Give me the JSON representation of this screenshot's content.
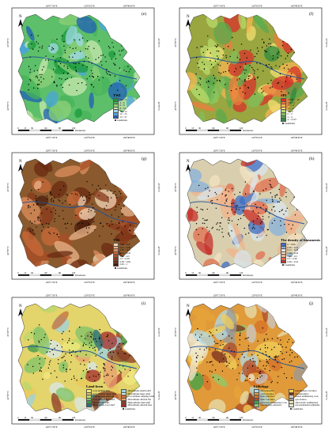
{
  "graticule": {
    "lon_ticks": [
      "129°17'30\"E",
      "129°35'0\"E",
      "130°48'30\"E"
    ],
    "lat_left": [
      "43°2'0\"N",
      "42°5'0\"N"
    ],
    "lat_right": [
      "43°2'0\"N",
      "42°5'0\"N"
    ]
  },
  "scalebar": {
    "ticks": [
      "0",
      "15",
      "30",
      "60",
      "90",
      "120"
    ],
    "unit": "Kilometers"
  },
  "north": "N",
  "landslides_label": "Landslides",
  "panels": [
    {
      "id": "e",
      "label": "(e)",
      "legend_title": "TWI",
      "legend_items": [
        {
          "text": "2.9 ~ 4",
          "color": "#1a9a3c"
        },
        {
          "text": "4 ~ 6",
          "color": "#46b35a"
        },
        {
          "text": "6 ~ 8",
          "color": "#8fd07a"
        },
        {
          "text": "8 ~ 10",
          "color": "#c8e8b0"
        },
        {
          "text": "10 ~ 12",
          "color": "#9fd8ea"
        },
        {
          "text": "12 ~ 15",
          "color": "#4aa6dc"
        },
        {
          "text": "15 ~ 27",
          "color": "#1f5fb7"
        }
      ],
      "map_color": "#5dbf6a"
    },
    {
      "id": "f",
      "label": "(f)",
      "legend_title": "SPI",
      "legend_items": [
        {
          "text": "-13.82 ~ -10",
          "color": "#d7302a"
        },
        {
          "text": "-10 ~ -7",
          "color": "#ef7b3e"
        },
        {
          "text": "-7 ~ -4",
          "color": "#f6b553"
        },
        {
          "text": "-4 ~ -2",
          "color": "#f3df73"
        },
        {
          "text": "-2 ~ 0",
          "color": "#b8d96a"
        },
        {
          "text": "0 ~ 2",
          "color": "#7fbf59"
        },
        {
          "text": "2 ~ 4",
          "color": "#58a94d"
        },
        {
          "text": "4 ~ 13.25",
          "color": "#2e8a3e"
        }
      ],
      "map_color": "#9aa640"
    },
    {
      "id": "g",
      "label": "(g)",
      "legend_title": "TRI",
      "legend_items": [
        {
          "text": "0.99 ~ 0.27",
          "color": "#f2d4b6"
        },
        {
          "text": "0.27 ~ 0.36",
          "color": "#e9b48a"
        },
        {
          "text": "0.36 ~ 0.41",
          "color": "#dc8f5d"
        },
        {
          "text": "0.41 ~ 0.45",
          "color": "#c96a3a"
        },
        {
          "text": "0.45 ~ 0.5",
          "color": "#a84e27"
        },
        {
          "text": "0.5 ~ 0.58",
          "color": "#8a3a1b"
        },
        {
          "text": "0.58 ~ 0.65",
          "color": "#6a2a12"
        },
        {
          "text": "0.65 ~ 1",
          "color": "#4c1d0b"
        }
      ],
      "map_color": "#8a5a2e"
    },
    {
      "id": "h",
      "label": "(h)",
      "legend_title": "The density of lineaments",
      "legend_items": [
        {
          "text": "0 ~ 0.06",
          "color": "#3e6dc4"
        },
        {
          "text": "0.06 ~ 0.12",
          "color": "#86b1dc"
        },
        {
          "text": "0.12 ~ 0.18",
          "color": "#d8e6ec"
        },
        {
          "text": "0.18 ~ 0.24",
          "color": "#f1e3c2"
        },
        {
          "text": "0.24 ~ 0.3",
          "color": "#f0b189"
        },
        {
          "text": "0.3 ~ 0.36",
          "color": "#e06d4e"
        },
        {
          "text": "0.36 ~ 0.41",
          "color": "#c6312a"
        }
      ],
      "map_color": "#d9cfae"
    },
    {
      "id": "i",
      "label": "(i)",
      "legend_title": "Land form",
      "legend_items": [
        {
          "text": "Low-altitude hills",
          "color": "#f2e97d"
        },
        {
          "text": "Low-altitude small relief",
          "color": "#e9c95b"
        },
        {
          "text": "Low-altitude platform",
          "color": "#b9d86a"
        },
        {
          "text": "Low-altitude mid relief",
          "color": "#7fc36a"
        },
        {
          "text": "Mid-altitude hills",
          "color": "#3c9a4a"
        },
        {
          "text": "Mid-altitude low relief",
          "color": "#2b6d7a"
        },
        {
          "text": "Mid-altitude small relief",
          "color": "#9cd3e2"
        },
        {
          "text": "Mid-altitude huge relief",
          "color": "#d9e8ec"
        },
        {
          "text": "Low-altitude stepping relief",
          "color": "#c76f3c"
        },
        {
          "text": "Mid-altitude alluvial flat",
          "color": "#e8a070"
        },
        {
          "text": "High-altitude mid relief",
          "color": "#8a3d26"
        },
        {
          "text": "Mid-altitude alluvial fans",
          "color": "#a32b2b"
        }
      ],
      "map_color": "#e3d46c"
    },
    {
      "id": "j",
      "label": "(j)",
      "legend_title": "Lithology",
      "legend_items": [
        {
          "text": "acid plutonics",
          "color": "#b0d9e8"
        },
        {
          "text": "acid volcanics",
          "color": "#e6a43a"
        },
        {
          "text": "basic plutonics",
          "color": "#d6702a"
        },
        {
          "text": "basic volcanics",
          "color": "#b04a26"
        },
        {
          "text": "carbonate sedimentary rock",
          "color": "#3ea24a"
        },
        {
          "text": "intermediate plutonics",
          "color": "#8fca6a"
        },
        {
          "text": "intermediate volcanics",
          "color": "#f0cf5a"
        },
        {
          "text": "metamorphics",
          "color": "#7a2d1d"
        },
        {
          "text": "mixed sedimentary rock",
          "color": "#c9c9c9"
        },
        {
          "text": "pyroclastics",
          "color": "#9a9a9a"
        },
        {
          "text": "siliciclastic sedimentary",
          "color": "#e7dfb0"
        },
        {
          "text": "unconsolidated sediments",
          "color": "#efe9d2"
        }
      ],
      "map_color": "#e09a3a"
    }
  ]
}
